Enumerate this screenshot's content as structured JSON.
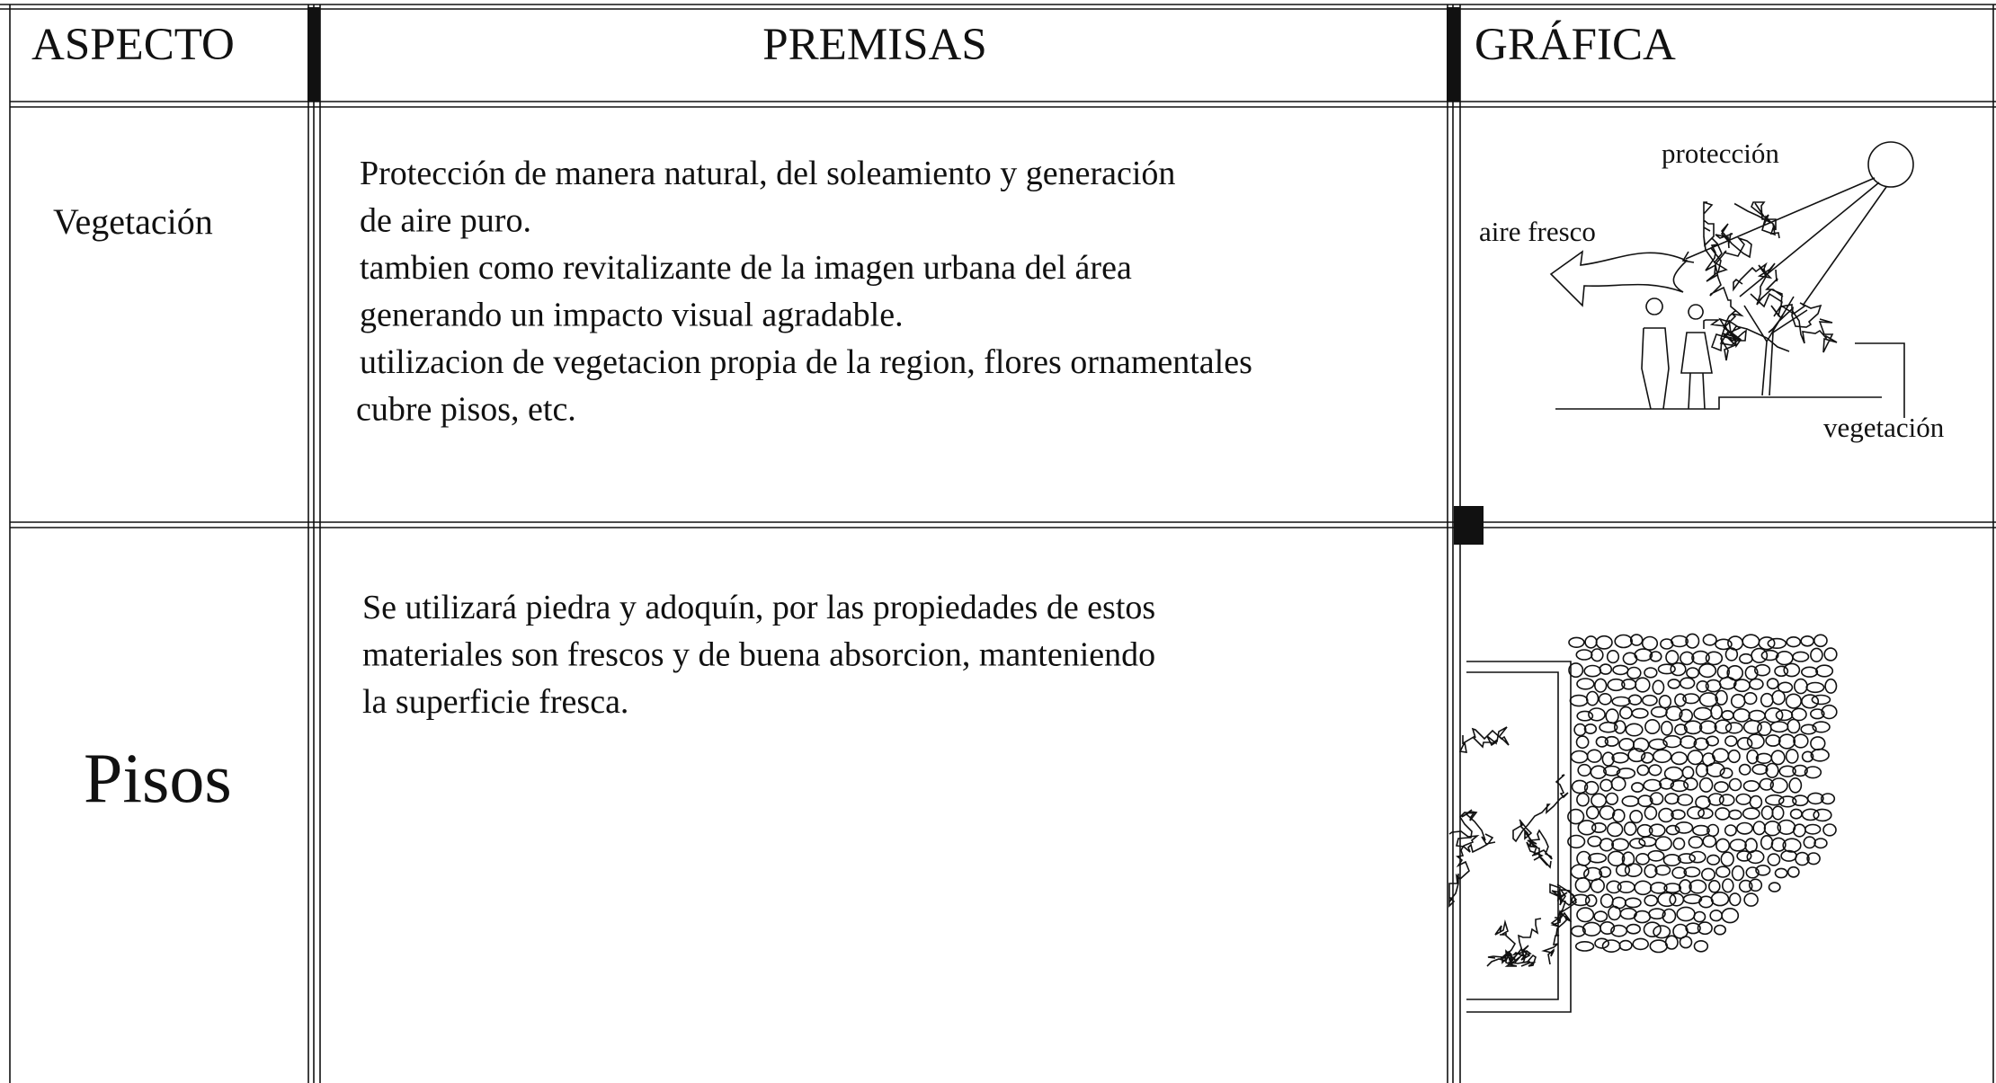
{
  "table": {
    "headers": [
      "ASPECTO",
      "PREMISAS",
      "GRÁFICA"
    ],
    "rows": [
      {
        "aspect": "Vegetación",
        "premises": [
          "Protección de manera natural, del soleamiento y generación",
          "de aire puro.",
          "tambien como revitalizante de la imagen urbana del área",
          "generando un impacto visual agradable.",
          "utilizacion de vegetacion propia de la region, flores ornamentales",
          "cubre pisos, etc."
        ],
        "graphic_labels": [
          "protección",
          "aire fresco",
          "vegetación"
        ]
      },
      {
        "aspect": "Pisos",
        "premises": [
          "Se utilizará piedra y adoquín, por las propiedades de estos",
          "materiales son frescos y de buena absorcion, manteniendo",
          "la superficie fresca."
        ]
      }
    ]
  }
}
